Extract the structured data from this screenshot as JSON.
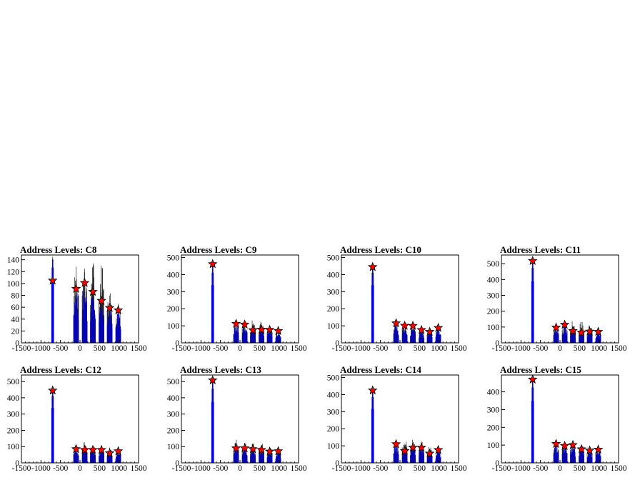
{
  "colors": {
    "background": "#ffffff",
    "frame": "#000000",
    "hist_black": "#000000",
    "hist_blue": "#0000ff",
    "marker_fill": "#ff0000",
    "marker_edge": "#000000"
  },
  "chart_data": [
    {
      "type": "bar",
      "title": "Address Levels: C8",
      "xlim": [
        -1500,
        1500
      ],
      "ylim": [
        0,
        148
      ],
      "xticks": [
        -1500,
        -1000,
        -500,
        0,
        500,
        1000,
        1500
      ],
      "xtick_labels": [
        "-1500",
        "-1000",
        "-500",
        "0",
        "500",
        "1000",
        "1500"
      ],
      "yticks": [
        0,
        20,
        40,
        60,
        80,
        100,
        120,
        140
      ],
      "peaks": [
        {
          "x": -700,
          "black": 145,
          "blue": 145,
          "marker": 105
        },
        {
          "x": -100,
          "black": 130,
          "blue": 95,
          "marker": 91
        },
        {
          "x": 120,
          "black": 130,
          "blue": 105,
          "marker": 101
        },
        {
          "x": 330,
          "black": 135,
          "blue": 92,
          "marker": 86
        },
        {
          "x": 550,
          "black": 136,
          "blue": 75,
          "marker": 71
        },
        {
          "x": 760,
          "black": 90,
          "blue": 62,
          "marker": 59
        },
        {
          "x": 980,
          "black": 70,
          "blue": 58,
          "marker": 55
        }
      ]
    },
    {
      "type": "bar",
      "title": "Address Levels: C9",
      "xlim": [
        -1500,
        1500
      ],
      "ylim": [
        0,
        515
      ],
      "xticks": [
        -1500,
        -1000,
        -500,
        0,
        500,
        1000,
        1500
      ],
      "xtick_labels": [
        "-1500",
        "-1000",
        "-500",
        "0",
        "500",
        "1000",
        "1500"
      ],
      "yticks": [
        0,
        100,
        200,
        300,
        400,
        500
      ],
      "peaks": [
        {
          "x": -700,
          "black": 470,
          "blue": 470,
          "marker": 462
        },
        {
          "x": -100,
          "black": 135,
          "blue": 120,
          "marker": 112
        },
        {
          "x": 120,
          "black": 130,
          "blue": 115,
          "marker": 108
        },
        {
          "x": 330,
          "black": 135,
          "blue": 85,
          "marker": 75
        },
        {
          "x": 550,
          "black": 135,
          "blue": 85,
          "marker": 78
        },
        {
          "x": 760,
          "black": 100,
          "blue": 85,
          "marker": 77
        },
        {
          "x": 980,
          "black": 85,
          "blue": 75,
          "marker": 70
        }
      ]
    },
    {
      "type": "bar",
      "title": "Address Levels: C10",
      "xlim": [
        -1500,
        1500
      ],
      "ylim": [
        0,
        515
      ],
      "xticks": [
        -1500,
        -1000,
        -500,
        0,
        500,
        1000,
        1500
      ],
      "xtick_labels": [
        "-1500",
        "-1000",
        "-500",
        "0",
        "500",
        "1000",
        "1500"
      ],
      "yticks": [
        0,
        100,
        200,
        300,
        400,
        500
      ],
      "peaks": [
        {
          "x": -700,
          "black": 470,
          "blue": 455,
          "marker": 445
        },
        {
          "x": -100,
          "black": 145,
          "blue": 125,
          "marker": 115
        },
        {
          "x": 120,
          "black": 125,
          "blue": 110,
          "marker": 101
        },
        {
          "x": 330,
          "black": 125,
          "blue": 110,
          "marker": 100
        },
        {
          "x": 550,
          "black": 100,
          "blue": 85,
          "marker": 76
        },
        {
          "x": 760,
          "black": 90,
          "blue": 75,
          "marker": 65
        },
        {
          "x": 980,
          "black": 100,
          "blue": 95,
          "marker": 88
        }
      ]
    },
    {
      "type": "bar",
      "title": "Address Levels: C11",
      "xlim": [
        -1500,
        1500
      ],
      "ylim": [
        0,
        555
      ],
      "xticks": [
        -1500,
        -1000,
        -500,
        0,
        500,
        1000,
        1500
      ],
      "xtick_labels": [
        "-1500",
        "-1000",
        "-500",
        "0",
        "500",
        "1000",
        "1500"
      ],
      "yticks": [
        0,
        100,
        200,
        300,
        400,
        500
      ],
      "peaks": [
        {
          "x": -700,
          "black": 540,
          "blue": 540,
          "marker": 518
        },
        {
          "x": -100,
          "black": 125,
          "blue": 105,
          "marker": 97
        },
        {
          "x": 120,
          "black": 130,
          "blue": 120,
          "marker": 115
        },
        {
          "x": 330,
          "black": 150,
          "blue": 85,
          "marker": 75
        },
        {
          "x": 550,
          "black": 140,
          "blue": 75,
          "marker": 65
        },
        {
          "x": 760,
          "black": 130,
          "blue": 80,
          "marker": 72
        },
        {
          "x": 980,
          "black": 90,
          "blue": 80,
          "marker": 70
        }
      ]
    },
    {
      "type": "bar",
      "title": "Address Levels: C12",
      "xlim": [
        -1500,
        1500
      ],
      "ylim": [
        0,
        540
      ],
      "xticks": [
        -1500,
        -1000,
        -500,
        0,
        500,
        1000,
        1500
      ],
      "xtick_labels": [
        "-1500",
        "-1000",
        "-500",
        "0",
        "500",
        "1000",
        "1500"
      ],
      "yticks": [
        0,
        100,
        200,
        300,
        400,
        500
      ],
      "peaks": [
        {
          "x": -700,
          "black": 470,
          "blue": 460,
          "marker": 445
        },
        {
          "x": -100,
          "black": 125,
          "blue": 95,
          "marker": 85
        },
        {
          "x": 120,
          "black": 130,
          "blue": 90,
          "marker": 80
        },
        {
          "x": 330,
          "black": 120,
          "blue": 90,
          "marker": 80
        },
        {
          "x": 550,
          "black": 110,
          "blue": 90,
          "marker": 80
        },
        {
          "x": 760,
          "black": 100,
          "blue": 70,
          "marker": 60
        },
        {
          "x": 980,
          "black": 85,
          "blue": 80,
          "marker": 72
        }
      ]
    },
    {
      "type": "bar",
      "title": "Address Levels: C13",
      "xlim": [
        -1500,
        1500
      ],
      "ylim": [
        0,
        540
      ],
      "xticks": [
        -1500,
        -1000,
        -500,
        0,
        500,
        1000,
        1500
      ],
      "xtick_labels": [
        "-1500",
        "-1000",
        "-500",
        "0",
        "500",
        "1000",
        "1500"
      ],
      "yticks": [
        0,
        100,
        200,
        300,
        400,
        500
      ],
      "peaks": [
        {
          "x": -700,
          "black": 520,
          "blue": 520,
          "marker": 508
        },
        {
          "x": -100,
          "black": 145,
          "blue": 100,
          "marker": 90
        },
        {
          "x": 120,
          "black": 135,
          "blue": 100,
          "marker": 90
        },
        {
          "x": 330,
          "black": 135,
          "blue": 95,
          "marker": 85
        },
        {
          "x": 550,
          "black": 130,
          "blue": 90,
          "marker": 80
        },
        {
          "x": 760,
          "black": 110,
          "blue": 80,
          "marker": 70
        },
        {
          "x": 980,
          "black": 85,
          "blue": 80,
          "marker": 72
        }
      ]
    },
    {
      "type": "bar",
      "title": "Address Levels: C14",
      "xlim": [
        -1500,
        1500
      ],
      "ylim": [
        0,
        515
      ],
      "xticks": [
        -1500,
        -1000,
        -500,
        0,
        500,
        1000,
        1500
      ],
      "xtick_labels": [
        "-1500",
        "-1000",
        "-500",
        "0",
        "500",
        "1000",
        "1500"
      ],
      "yticks": [
        0,
        100,
        200,
        300,
        400,
        500
      ],
      "peaks": [
        {
          "x": -700,
          "black": 440,
          "blue": 440,
          "marker": 425
        },
        {
          "x": -100,
          "black": 130,
          "blue": 120,
          "marker": 110
        },
        {
          "x": 120,
          "black": 150,
          "blue": 80,
          "marker": 70
        },
        {
          "x": 330,
          "black": 140,
          "blue": 100,
          "marker": 90
        },
        {
          "x": 550,
          "black": 130,
          "blue": 100,
          "marker": 90
        },
        {
          "x": 760,
          "black": 100,
          "blue": 65,
          "marker": 55
        },
        {
          "x": 980,
          "black": 90,
          "blue": 85,
          "marker": 76
        }
      ]
    },
    {
      "type": "bar",
      "title": "Address Levels: C15",
      "xlim": [
        -1500,
        1500
      ],
      "ylim": [
        0,
        495
      ],
      "xticks": [
        -1500,
        -1000,
        -500,
        0,
        500,
        1000,
        1500
      ],
      "xtick_labels": [
        "-1500",
        "-1000",
        "-500",
        "0",
        "500",
        "1000",
        "1500"
      ],
      "yticks": [
        0,
        100,
        200,
        300,
        400
      ],
      "peaks": [
        {
          "x": -700,
          "black": 485,
          "blue": 485,
          "marker": 470
        },
        {
          "x": -100,
          "black": 125,
          "blue": 115,
          "marker": 107
        },
        {
          "x": 120,
          "black": 125,
          "blue": 105,
          "marker": 96
        },
        {
          "x": 330,
          "black": 125,
          "blue": 110,
          "marker": 101
        },
        {
          "x": 550,
          "black": 115,
          "blue": 85,
          "marker": 77
        },
        {
          "x": 760,
          "black": 90,
          "blue": 80,
          "marker": 70
        },
        {
          "x": 980,
          "black": 90,
          "blue": 85,
          "marker": 75
        }
      ]
    }
  ]
}
